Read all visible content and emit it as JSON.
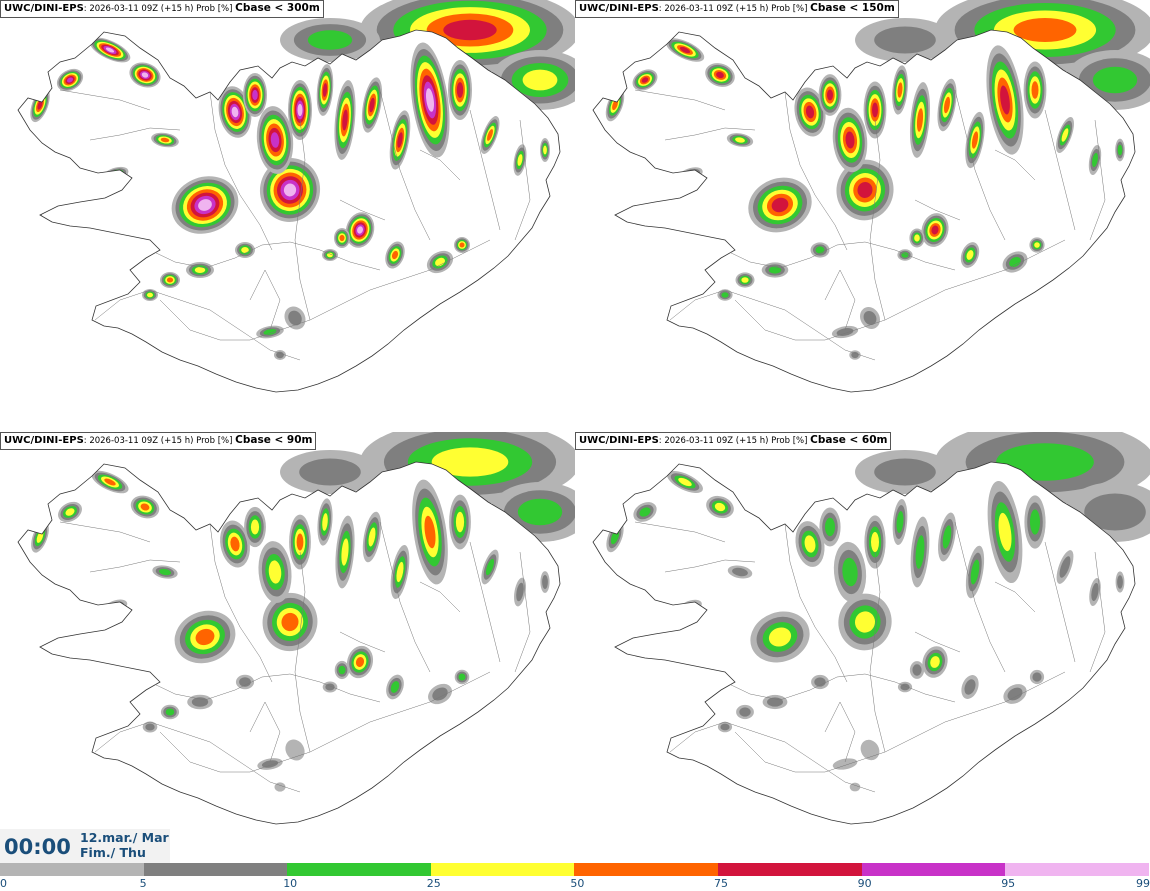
{
  "panels": [
    {
      "model": "UWC/DINI-EPS",
      "run": ": 2026-03-11 09Z (+15 h) Prob [%] ",
      "param": "Cbase < 300m",
      "intensity": 1.0
    },
    {
      "model": "UWC/DINI-EPS",
      "run": ": 2026-03-11 09Z (+15 h) Prob [%] ",
      "param": "Cbase < 150m",
      "intensity": 0.8
    },
    {
      "model": "UWC/DINI-EPS",
      "run": ": 2026-03-11 09Z (+15 h) Prob [%] ",
      "param": "Cbase < 90m",
      "intensity": 0.65
    },
    {
      "model": "UWC/DINI-EPS",
      "run": ": 2026-03-11 09Z (+15 h) Prob [%] ",
      "param": "Cbase < 60m",
      "intensity": 0.55
    }
  ],
  "valid_time": {
    "time": "00:00",
    "date_line1": "12.mar./ Mar",
    "date_line2": "Fim./ Thu"
  },
  "legend": {
    "ticks": [
      "0",
      "5",
      "10",
      "25",
      "50",
      "75",
      "90",
      "95",
      "99"
    ],
    "colors": [
      "#ffffff",
      "#b4b4b4",
      "#7f7f7f",
      "#32c832",
      "#ffff32",
      "#ff6400",
      "#d2143c",
      "#c832c8",
      "#f0b4f0"
    ]
  }
}
